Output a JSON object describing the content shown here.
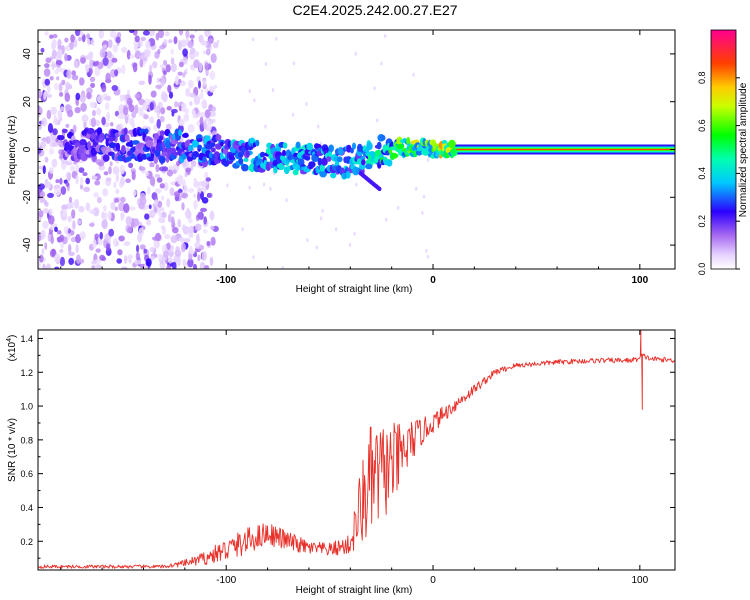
{
  "title": "C2E4.2025.242.00.27.E27",
  "chart_data": [
    {
      "type": "heatmap",
      "name": "spectrogram",
      "xlabel": "Height of straight line (km)",
      "ylabel": "Frequency (Hz)",
      "xlim": [
        -191,
        117
      ],
      "ylim": [
        -50,
        50
      ],
      "x_ticks": [
        -100,
        0,
        100
      ],
      "x_tick_labels": [
        "-100",
        "0",
        "100"
      ],
      "y_ticks": [
        -40,
        -20,
        0,
        20,
        40
      ],
      "y_tick_labels": [
        "-40",
        "-20",
        "0",
        "20",
        "40"
      ],
      "colorbar": {
        "label": "Normalized spectral amplitude",
        "range": [
          0,
          1
        ],
        "ticks": [
          0.0,
          0.2,
          0.4,
          0.6,
          0.8
        ],
        "tick_labels": [
          "0.0",
          "0.2",
          "0.4",
          "0.6",
          "0.8"
        ],
        "colormap": [
          "#ffffff",
          "#d8b8ff",
          "#8a2be2",
          "#0000ff",
          "#00ffff",
          "#00ff00",
          "#ffff00",
          "#ff8000",
          "#ff0000",
          "#ff0090"
        ]
      },
      "ridge": {
        "name": "dominant frequency track",
        "x": [
          -180,
          -160,
          -140,
          -120,
          -100,
          -80,
          -60,
          -45,
          -35,
          -25,
          -15,
          -5,
          0,
          20,
          60,
          117
        ],
        "y": [
          2,
          2,
          2,
          1,
          -1,
          -3,
          -4,
          -6,
          -4,
          -1,
          1,
          1,
          0,
          0,
          0,
          0
        ],
        "amplitude": [
          0.25,
          0.3,
          0.35,
          0.4,
          0.45,
          0.5,
          0.5,
          0.45,
          0.5,
          0.6,
          0.75,
          0.85,
          0.9,
          0.95,
          0.95,
          0.95
        ]
      },
      "noise_region": {
        "x_from": -191,
        "x_to": -120,
        "amplitude": 0.1
      }
    },
    {
      "type": "line",
      "name": "snr",
      "xlabel": "Height of straight line (km)",
      "ylabel": "SNR (10 * v/v)",
      "y_multiplier_label": "(x10",
      "y_multiplier_exp": "4",
      "xlim": [
        -191,
        117
      ],
      "ylim": [
        0.03,
        1.45
      ],
      "x_ticks": [
        -100,
        0,
        100
      ],
      "x_tick_labels": [
        "-100",
        "0",
        "100"
      ],
      "y_ticks": [
        0.2,
        0.4,
        0.6,
        0.8,
        1.0,
        1.2,
        1.4
      ],
      "y_tick_labels": [
        "0.2",
        "0.4",
        "0.6",
        "0.8",
        "1.0",
        "1.2",
        "1.4"
      ],
      "series": [
        {
          "name": "SNR",
          "color": "#e8302a",
          "envelope_x": [
            -191,
            -130,
            -120,
            -110,
            -100,
            -90,
            -80,
            -70,
            -60,
            -50,
            -40,
            -35,
            -30,
            -25,
            -20,
            -15,
            -10,
            -5,
            0,
            10,
            20,
            30,
            40,
            60,
            80,
            95,
            100,
            101,
            105,
            117
          ],
          "envelope_y": [
            0.05,
            0.05,
            0.07,
            0.1,
            0.15,
            0.2,
            0.25,
            0.2,
            0.16,
            0.15,
            0.18,
            0.4,
            0.55,
            0.6,
            0.65,
            0.7,
            0.8,
            0.85,
            0.9,
            1.0,
            1.1,
            1.2,
            1.24,
            1.26,
            1.27,
            1.27,
            1.28,
            1.3,
            1.28,
            1.27
          ],
          "noise_amp": [
            0.01,
            0.01,
            0.02,
            0.04,
            0.07,
            0.08,
            0.07,
            0.06,
            0.04,
            0.04,
            0.06,
            0.25,
            0.35,
            0.3,
            0.25,
            0.2,
            0.12,
            0.08,
            0.06,
            0.04,
            0.03,
            0.02,
            0.015,
            0.015,
            0.015,
            0.015,
            0.015,
            0.015,
            0.015,
            0.015
          ],
          "spikes": [
            {
              "x": 100.5,
              "y": 1.45
            },
            {
              "x": 101.2,
              "y": 0.98
            }
          ]
        }
      ]
    }
  ]
}
